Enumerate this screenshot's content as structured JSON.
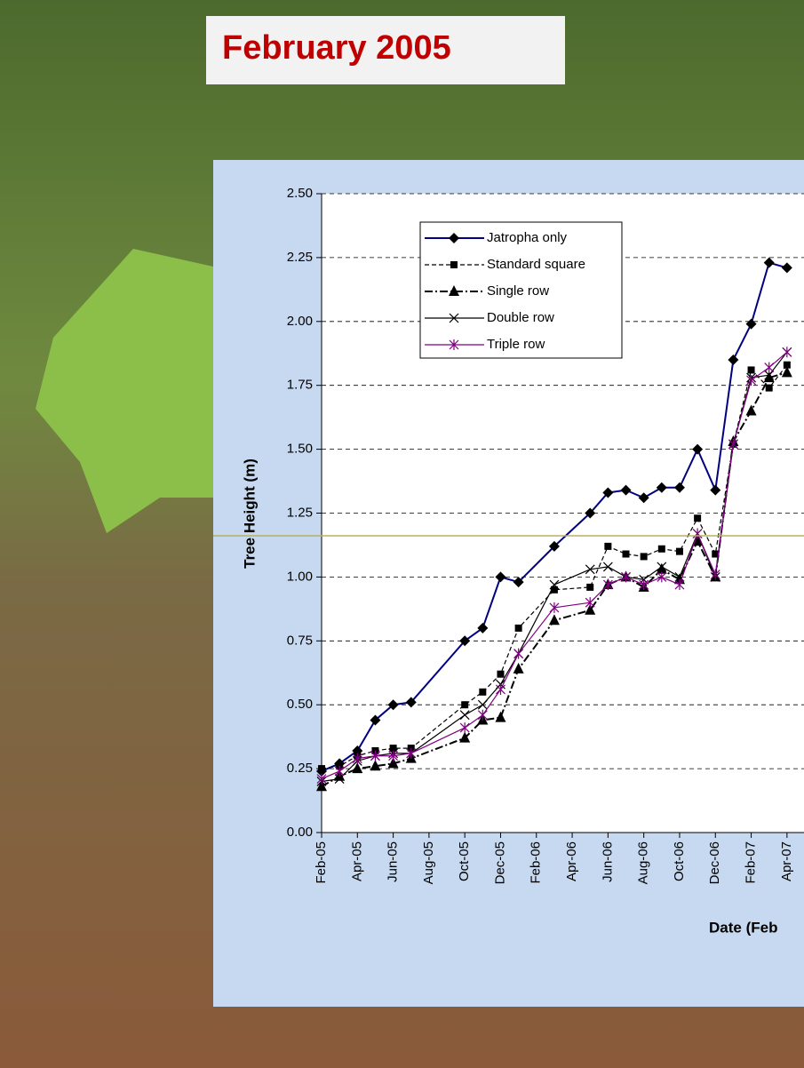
{
  "slide_title": "February 2005",
  "chart_data": {
    "type": "line",
    "ylabel": "Tree Height (m)",
    "xlabel": "Date (Feb",
    "ylim": [
      0,
      2.5
    ],
    "yticks": [
      {
        "value": 0,
        "label": "0.00"
      },
      {
        "value": 0.25,
        "label": "0.25"
      },
      {
        "value": 0.5,
        "label": "0.50"
      },
      {
        "value": 0.75,
        "label": "0.75"
      },
      {
        "value": 1,
        "label": "1.00"
      },
      {
        "value": 1.25,
        "label": "1.25"
      },
      {
        "value": 1.5,
        "label": "1.50"
      },
      {
        "value": 1.75,
        "label": "1.75"
      },
      {
        "value": 2,
        "label": "2.00"
      },
      {
        "value": 2.25,
        "label": "2.25"
      },
      {
        "value": 2.5,
        "label": "2.50"
      }
    ],
    "xlim": [
      "2005-02",
      "2007-05"
    ],
    "xticks": [
      {
        "value": "2005-02",
        "label": "Feb-05"
      },
      {
        "value": "2005-04",
        "label": "Apr-05"
      },
      {
        "value": "2005-06",
        "label": "Jun-05"
      },
      {
        "value": "2005-08",
        "label": "Aug-05"
      },
      {
        "value": "2005-10",
        "label": "Oct-05"
      },
      {
        "value": "2005-12",
        "label": "Dec-05"
      },
      {
        "value": "2006-02",
        "label": "Feb-06"
      },
      {
        "value": "2006-04",
        "label": "Apr-06"
      },
      {
        "value": "2006-06",
        "label": "Jun-06"
      },
      {
        "value": "2006-08",
        "label": "Aug-06"
      },
      {
        "value": "2006-10",
        "label": "Oct-06"
      },
      {
        "value": "2006-12",
        "label": "Dec-06"
      },
      {
        "value": "2007-02",
        "label": "Feb-07"
      },
      {
        "value": "2007-04",
        "label": "Apr-07"
      }
    ],
    "grid": true,
    "x": [
      "2005-02",
      "2005-03",
      "2005-04",
      "2005-05",
      "2005-06",
      "2005-07",
      "2005-10",
      "2005-11",
      "2005-12",
      "2006-01",
      "2006-03",
      "2006-05",
      "2006-06",
      "2006-07",
      "2006-08",
      "2006-09",
      "2006-10",
      "2006-11",
      "2006-12",
      "2007-01",
      "2007-02",
      "2007-03",
      "2007-04"
    ],
    "series": [
      {
        "name": "Jatropha only",
        "color": "#000080",
        "marker": "diamond",
        "dash": "solid",
        "values": [
          0.24,
          0.27,
          0.32,
          0.44,
          0.5,
          0.51,
          0.75,
          0.8,
          1.0,
          0.98,
          1.12,
          1.25,
          1.33,
          1.34,
          1.31,
          1.35,
          1.35,
          1.5,
          1.34,
          1.85,
          1.99,
          2.23,
          2.21
        ]
      },
      {
        "name": "Standard square",
        "color": "#000000",
        "marker": "square",
        "dash": "dashed",
        "values": [
          0.25,
          0.26,
          0.3,
          0.32,
          0.33,
          0.33,
          0.5,
          0.55,
          0.62,
          0.8,
          0.95,
          0.96,
          1.12,
          1.09,
          1.08,
          1.11,
          1.1,
          1.23,
          1.09,
          1.52,
          1.81,
          1.74,
          1.83
        ]
      },
      {
        "name": "Single row",
        "color": "#000000",
        "marker": "triangle",
        "dash": "dashdot",
        "values": [
          0.18,
          0.22,
          0.25,
          0.26,
          0.27,
          0.29,
          0.37,
          0.44,
          0.45,
          0.64,
          0.83,
          0.87,
          0.97,
          1.0,
          0.96,
          1.03,
          0.99,
          1.14,
          1.0,
          1.53,
          1.65,
          1.78,
          1.8
        ]
      },
      {
        "name": "Double row",
        "color": "#000000",
        "marker": "x",
        "dash": "solid",
        "values": [
          0.2,
          0.21,
          0.28,
          0.3,
          0.31,
          0.31,
          0.46,
          0.5,
          0.58,
          0.7,
          0.97,
          1.03,
          1.04,
          1.0,
          0.99,
          1.04,
          1.0,
          1.17,
          1.0,
          1.52,
          1.78,
          1.79,
          1.88
        ]
      },
      {
        "name": "Triple row",
        "color": "#800080",
        "marker": "star",
        "dash": "solid",
        "values": [
          0.21,
          0.24,
          0.29,
          0.3,
          0.3,
          0.31,
          0.41,
          0.46,
          0.56,
          0.7,
          0.88,
          0.9,
          0.97,
          1.0,
          0.97,
          1.0,
          0.97,
          1.17,
          1.01,
          1.52,
          1.77,
          1.82,
          1.88
        ]
      }
    ]
  }
}
